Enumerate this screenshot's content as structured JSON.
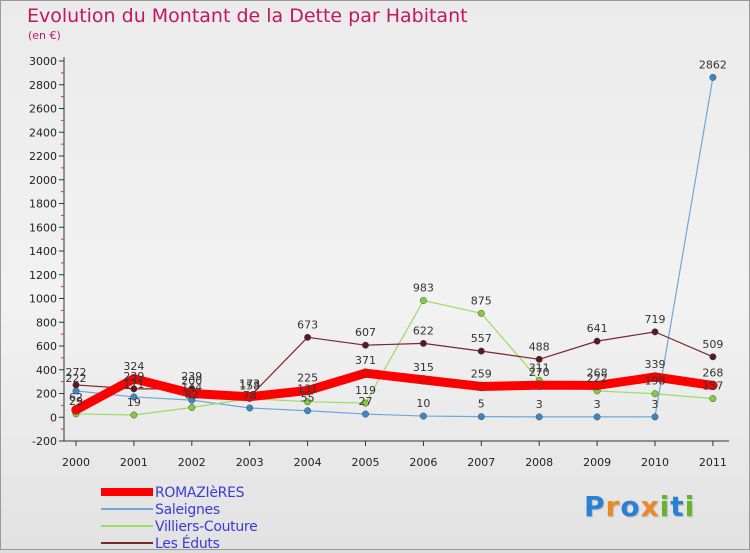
{
  "title": "Evolution du Montant de la Dette par Habitant",
  "subtitle": "(en €)",
  "logo": {
    "text": "Proxiti",
    "letters": [
      "P",
      "r",
      "o",
      "x",
      "i",
      "t",
      "i"
    ],
    "colors": [
      "#2b7fd4",
      "#e8892a",
      "#2b7fd4",
      "#e8892a",
      "#66b32e",
      "#2b7fd4",
      "#66b32e"
    ]
  },
  "chart_data": {
    "type": "line",
    "x": [
      "2000",
      "2001",
      "2002",
      "2003",
      "2004",
      "2005",
      "2006",
      "2007",
      "2008",
      "2009",
      "2010",
      "2011"
    ],
    "y_ticks": [
      "-200",
      "0",
      "200",
      "400",
      "600",
      "800",
      "1000",
      "1200",
      "1400",
      "1600",
      "1800",
      "2000",
      "2200",
      "2400",
      "2600",
      "2800",
      "3000"
    ],
    "ylim": [
      -200,
      3000
    ],
    "grid": false,
    "legend_position": "bottom-left",
    "series": [
      {
        "name": "ROMAZIèRES",
        "color": "#ff0000",
        "width": 9,
        "values": [
          62,
          324,
          200,
          173,
          225,
          371,
          315,
          259,
          270,
          268,
          339,
          268
        ],
        "labels": [
          "62",
          "324",
          "200",
          "173",
          "225",
          "371",
          "315",
          "259",
          "270",
          "268",
          "339",
          "268"
        ]
      },
      {
        "name": "Saleignes",
        "color": "#6fa8d6",
        "width": 1.2,
        "values": [
          222,
          171,
          144,
          78,
          55,
          27,
          10,
          5,
          3,
          3,
          3,
          2862
        ],
        "labels": [
          "222",
          "171",
          "144",
          "78",
          "55",
          "27",
          "10",
          "5",
          "3",
          "3",
          "3",
          "2862"
        ]
      },
      {
        "name": "Villiers-Couture",
        "color": "#99dd66",
        "width": 1.2,
        "values": [
          29,
          19,
          82,
          158,
          131,
          119,
          983,
          875,
          311,
          222,
          198,
          157
        ],
        "labels": [
          "29",
          "19",
          "82",
          "158",
          "131",
          "119",
          "983",
          "875",
          "311",
          "222",
          "198",
          "157"
        ]
      },
      {
        "name": "Les Éduts",
        "color": "#7a2630",
        "width": 1.2,
        "values": [
          272,
          239,
          239,
          173,
          673,
          607,
          622,
          557,
          488,
          641,
          719,
          509
        ],
        "labels": [
          "272",
          "239",
          "239",
          "173",
          "673",
          "607",
          "622",
          "557",
          "488",
          "641",
          "719",
          "509"
        ]
      }
    ]
  }
}
